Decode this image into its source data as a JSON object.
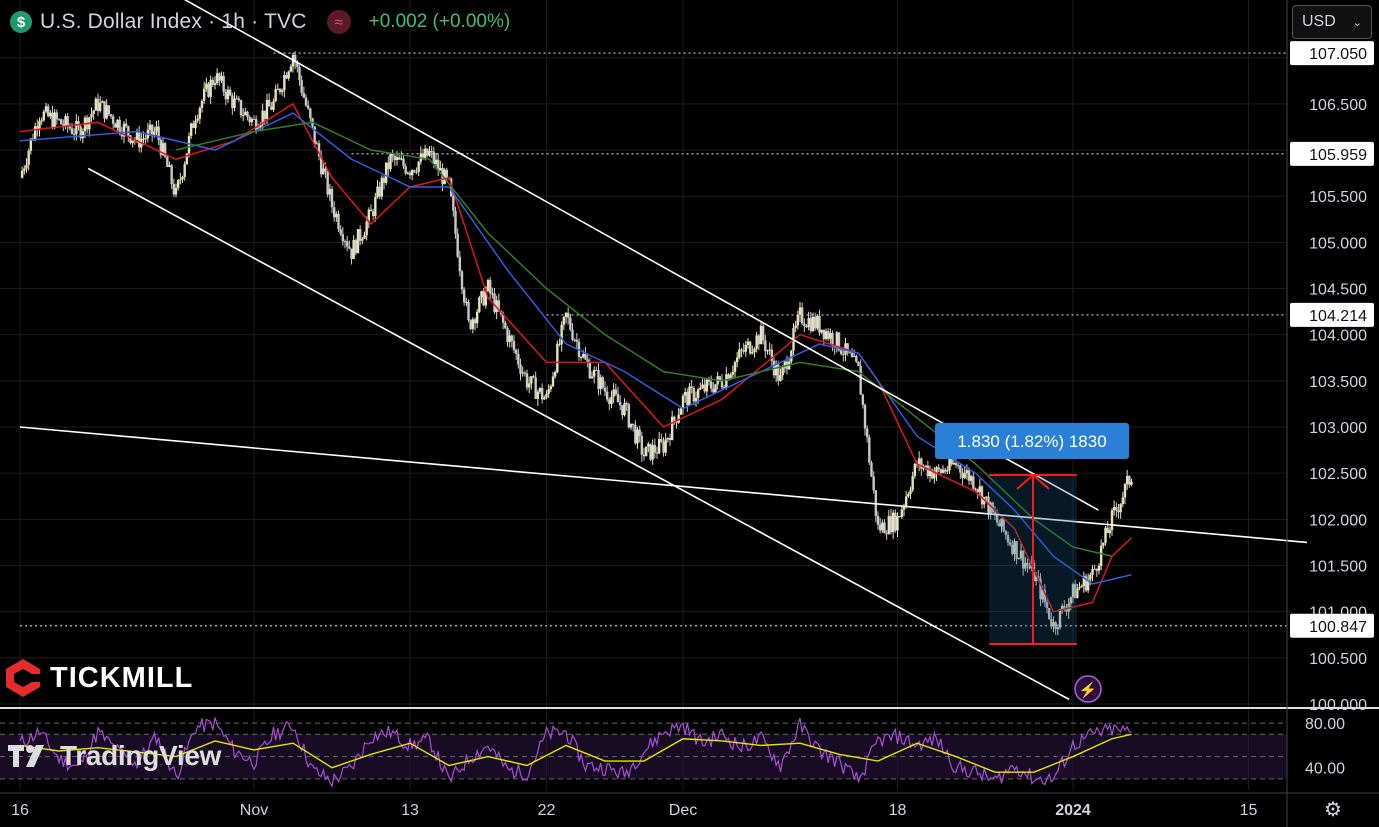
{
  "header": {
    "symbol_icon": "dollar-sign-icon",
    "title": "U.S. Dollar Index · 1h · TVC",
    "indicator_icon": "wave-icon",
    "change": "+0.002 (+0.00%)"
  },
  "currency_select": {
    "value": "USD",
    "icon": "chevron-down-icon"
  },
  "branding": {
    "tickmill": "TICKMILL",
    "tradingview": "TradingView"
  },
  "settings_icon": "gear-icon",
  "colors": {
    "background": "#000000",
    "bull_candle": "#e8e2b8",
    "bear_candle": "#c9c9c9",
    "ma_fast": "#e0161e",
    "ma_mid": "#2e5fe0",
    "ma_slow": "#2f7f24",
    "rsi_line": "#a84fd6",
    "rsi_signal": "#e6e600",
    "measure_red": "#ff1a1a",
    "measure_label": "#2a7fd6"
  },
  "chart_data": {
    "type": "candlestick",
    "title": "U.S. Dollar Index · 1h · TVC",
    "timeframe": "1h",
    "ylim": [
      100.0,
      107.3
    ],
    "y_ticks": [
      100.0,
      100.5,
      101.0,
      101.5,
      102.0,
      102.5,
      103.0,
      103.5,
      104.0,
      104.5,
      105.0,
      105.5,
      106.0,
      106.5,
      107.0
    ],
    "x_tick_labels": [
      "16",
      "Nov",
      "13",
      "22",
      "Dec",
      "18",
      "2024",
      "15"
    ],
    "x_ticks": [
      {
        "label": "16",
        "x": 0
      },
      {
        "label": "Nov",
        "x": 12
      },
      {
        "label": "13",
        "x": 20
      },
      {
        "label": "22",
        "x": 27
      },
      {
        "label": "Dec",
        "x": 34
      },
      {
        "label": "18",
        "x": 45
      },
      {
        "label": "2024",
        "x": 54
      },
      {
        "label": "15",
        "x": 63
      }
    ],
    "x_max": 66,
    "price_path": [
      [
        0,
        105.7
      ],
      [
        1,
        106.4
      ],
      [
        2,
        106.3
      ],
      [
        3,
        106.2
      ],
      [
        4,
        106.5
      ],
      [
        5,
        106.3
      ],
      [
        6,
        106.1
      ],
      [
        7,
        106.2
      ],
      [
        8,
        105.5
      ],
      [
        9,
        106.4
      ],
      [
        10,
        106.8
      ],
      [
        11,
        106.5
      ],
      [
        12,
        106.3
      ],
      [
        13,
        106.5
      ],
      [
        14,
        107.05
      ],
      [
        15,
        106.2
      ],
      [
        16,
        105.4
      ],
      [
        17,
        104.9
      ],
      [
        18,
        105.3
      ],
      [
        19,
        105.9
      ],
      [
        20,
        105.8
      ],
      [
        21,
        105.96
      ],
      [
        22,
        105.6
      ],
      [
        23,
        104.1
      ],
      [
        24,
        104.5
      ],
      [
        25,
        104.0
      ],
      [
        26,
        103.5
      ],
      [
        27,
        103.3
      ],
      [
        28,
        104.2
      ],
      [
        29,
        103.7
      ],
      [
        30,
        103.4
      ],
      [
        31,
        103.2
      ],
      [
        32,
        102.7
      ],
      [
        33,
        102.8
      ],
      [
        34,
        103.3
      ],
      [
        35,
        103.4
      ],
      [
        36,
        103.5
      ],
      [
        37,
        103.8
      ],
      [
        38,
        104.0
      ],
      [
        39,
        103.5
      ],
      [
        40,
        104.2
      ],
      [
        41,
        104.1
      ],
      [
        42,
        103.9
      ],
      [
        43,
        103.6
      ],
      [
        44,
        101.9
      ],
      [
        45,
        102.0
      ],
      [
        46,
        102.6
      ],
      [
        47,
        102.5
      ],
      [
        48,
        102.6
      ],
      [
        49,
        102.4
      ],
      [
        50,
        102.0
      ],
      [
        51,
        101.7
      ],
      [
        52,
        101.4
      ],
      [
        53,
        100.85
      ],
      [
        54,
        101.2
      ],
      [
        55,
        101.4
      ],
      [
        56,
        102.0
      ],
      [
        57,
        102.48
      ]
    ],
    "moving_averages": [
      {
        "name": "",
        "color": "#e0161e",
        "points": [
          [
            0,
            106.2
          ],
          [
            4,
            106.3
          ],
          [
            8,
            105.9
          ],
          [
            11,
            106.1
          ],
          [
            14,
            106.5
          ],
          [
            16,
            105.7
          ],
          [
            18,
            105.2
          ],
          [
            20,
            105.6
          ],
          [
            22,
            105.7
          ],
          [
            24,
            104.4
          ],
          [
            27,
            103.7
          ],
          [
            30,
            103.7
          ],
          [
            33,
            103.0
          ],
          [
            36,
            103.3
          ],
          [
            40,
            104.0
          ],
          [
            43,
            103.8
          ],
          [
            44,
            103.5
          ],
          [
            46,
            102.6
          ],
          [
            49,
            102.3
          ],
          [
            51,
            101.9
          ],
          [
            53,
            101.0
          ],
          [
            55,
            101.1
          ],
          [
            56,
            101.6
          ],
          [
            57,
            101.8
          ]
        ]
      },
      {
        "name": "",
        "color": "#2e5fe0",
        "points": [
          [
            0,
            106.1
          ],
          [
            6,
            106.2
          ],
          [
            10,
            106.0
          ],
          [
            14,
            106.4
          ],
          [
            17,
            105.9
          ],
          [
            20,
            105.6
          ],
          [
            22,
            105.6
          ],
          [
            25,
            104.7
          ],
          [
            28,
            103.9
          ],
          [
            31,
            103.6
          ],
          [
            34,
            103.2
          ],
          [
            38,
            103.6
          ],
          [
            41,
            103.9
          ],
          [
            43,
            103.8
          ],
          [
            46,
            102.9
          ],
          [
            49,
            102.5
          ],
          [
            51,
            102.1
          ],
          [
            53,
            101.6
          ],
          [
            55,
            101.3
          ],
          [
            57,
            101.4
          ]
        ]
      },
      {
        "name": "",
        "color": "#2f7f24",
        "points": [
          [
            8,
            106.0
          ],
          [
            12,
            106.2
          ],
          [
            15,
            106.3
          ],
          [
            18,
            106.0
          ],
          [
            21,
            105.9
          ],
          [
            24,
            105.1
          ],
          [
            27,
            104.5
          ],
          [
            30,
            104.0
          ],
          [
            33,
            103.6
          ],
          [
            36,
            103.5
          ],
          [
            40,
            103.7
          ],
          [
            43,
            103.6
          ],
          [
            46,
            103.1
          ],
          [
            49,
            102.6
          ],
          [
            52,
            102.0
          ],
          [
            54,
            101.7
          ],
          [
            56,
            101.6
          ]
        ]
      }
    ],
    "horizontal_levels": [
      {
        "label": "107.050",
        "value": 107.05,
        "from_x": 13
      },
      {
        "label": "105.959",
        "value": 105.959,
        "from_x": 17
      },
      {
        "label": "104.214",
        "value": 104.214,
        "from_x": 27
      },
      {
        "label": "100.847",
        "value": 100.847,
        "from_x": 0
      }
    ],
    "trendlines": [
      {
        "name": "",
        "from": [
          7,
          107.8
        ],
        "to": [
          55.3,
          102.1
        ]
      },
      {
        "name": "",
        "from": [
          3.5,
          105.8
        ],
        "to": [
          53.8,
          100.05
        ]
      },
      {
        "name": "",
        "from": [
          0,
          103.0
        ],
        "to": [
          66,
          101.75
        ]
      }
    ],
    "measurement": {
      "label": "1.830 (1.82%) 1830",
      "from": [
        49.7,
        100.65
      ],
      "to": [
        54.2,
        102.48
      ],
      "value": 1.83,
      "percent": 1.82,
      "ticks": 1830
    },
    "rsi": {
      "ylim": [
        20,
        90
      ],
      "y_ticks": [
        80.0,
        40.0
      ],
      "y_tick_labels": [
        "80.00",
        "40.00"
      ],
      "bands": [
        70,
        30
      ],
      "series": [
        [
          0,
          62
        ],
        [
          1,
          72
        ],
        [
          2,
          48
        ],
        [
          3,
          40
        ],
        [
          4,
          72
        ],
        [
          5,
          55
        ],
        [
          6,
          44
        ],
        [
          7,
          68
        ],
        [
          8,
          32
        ],
        [
          9,
          76
        ],
        [
          10,
          80
        ],
        [
          11,
          55
        ],
        [
          12,
          45
        ],
        [
          13,
          70
        ],
        [
          14,
          78
        ],
        [
          15,
          38
        ],
        [
          16,
          28
        ],
        [
          17,
          40
        ],
        [
          18,
          68
        ],
        [
          19,
          72
        ],
        [
          20,
          60
        ],
        [
          21,
          65
        ],
        [
          22,
          28
        ],
        [
          23,
          48
        ],
        [
          24,
          60
        ],
        [
          25,
          38
        ],
        [
          26,
          35
        ],
        [
          27,
          70
        ],
        [
          28,
          72
        ],
        [
          29,
          42
        ],
        [
          30,
          40
        ],
        [
          31,
          34
        ],
        [
          32,
          55
        ],
        [
          33,
          72
        ],
        [
          34,
          78
        ],
        [
          35,
          62
        ],
        [
          36,
          70
        ],
        [
          37,
          58
        ],
        [
          38,
          66
        ],
        [
          39,
          42
        ],
        [
          40,
          78
        ],
        [
          41,
          55
        ],
        [
          42,
          45
        ],
        [
          43,
          28
        ],
        [
          44,
          64
        ],
        [
          45,
          68
        ],
        [
          46,
          60
        ],
        [
          47,
          66
        ],
        [
          48,
          40
        ],
        [
          49,
          36
        ],
        [
          50,
          28
        ],
        [
          51,
          42
        ],
        [
          52,
          30
        ],
        [
          53,
          30
        ],
        [
          54,
          60
        ],
        [
          55,
          70
        ],
        [
          56,
          74
        ],
        [
          57,
          72
        ]
      ],
      "signal": [
        [
          0,
          60
        ],
        [
          2,
          55
        ],
        [
          4,
          58
        ],
        [
          6,
          54
        ],
        [
          8,
          50
        ],
        [
          10,
          64
        ],
        [
          12,
          56
        ],
        [
          14,
          62
        ],
        [
          16,
          40
        ],
        [
          18,
          52
        ],
        [
          20,
          62
        ],
        [
          22,
          42
        ],
        [
          24,
          50
        ],
        [
          26,
          42
        ],
        [
          28,
          60
        ],
        [
          30,
          46
        ],
        [
          32,
          46
        ],
        [
          34,
          66
        ],
        [
          36,
          64
        ],
        [
          38,
          60
        ],
        [
          40,
          62
        ],
        [
          42,
          52
        ],
        [
          44,
          46
        ],
        [
          46,
          62
        ],
        [
          48,
          50
        ],
        [
          50,
          36
        ],
        [
          52,
          36
        ],
        [
          54,
          50
        ],
        [
          56,
          66
        ],
        [
          57,
          70
        ]
      ]
    }
  }
}
